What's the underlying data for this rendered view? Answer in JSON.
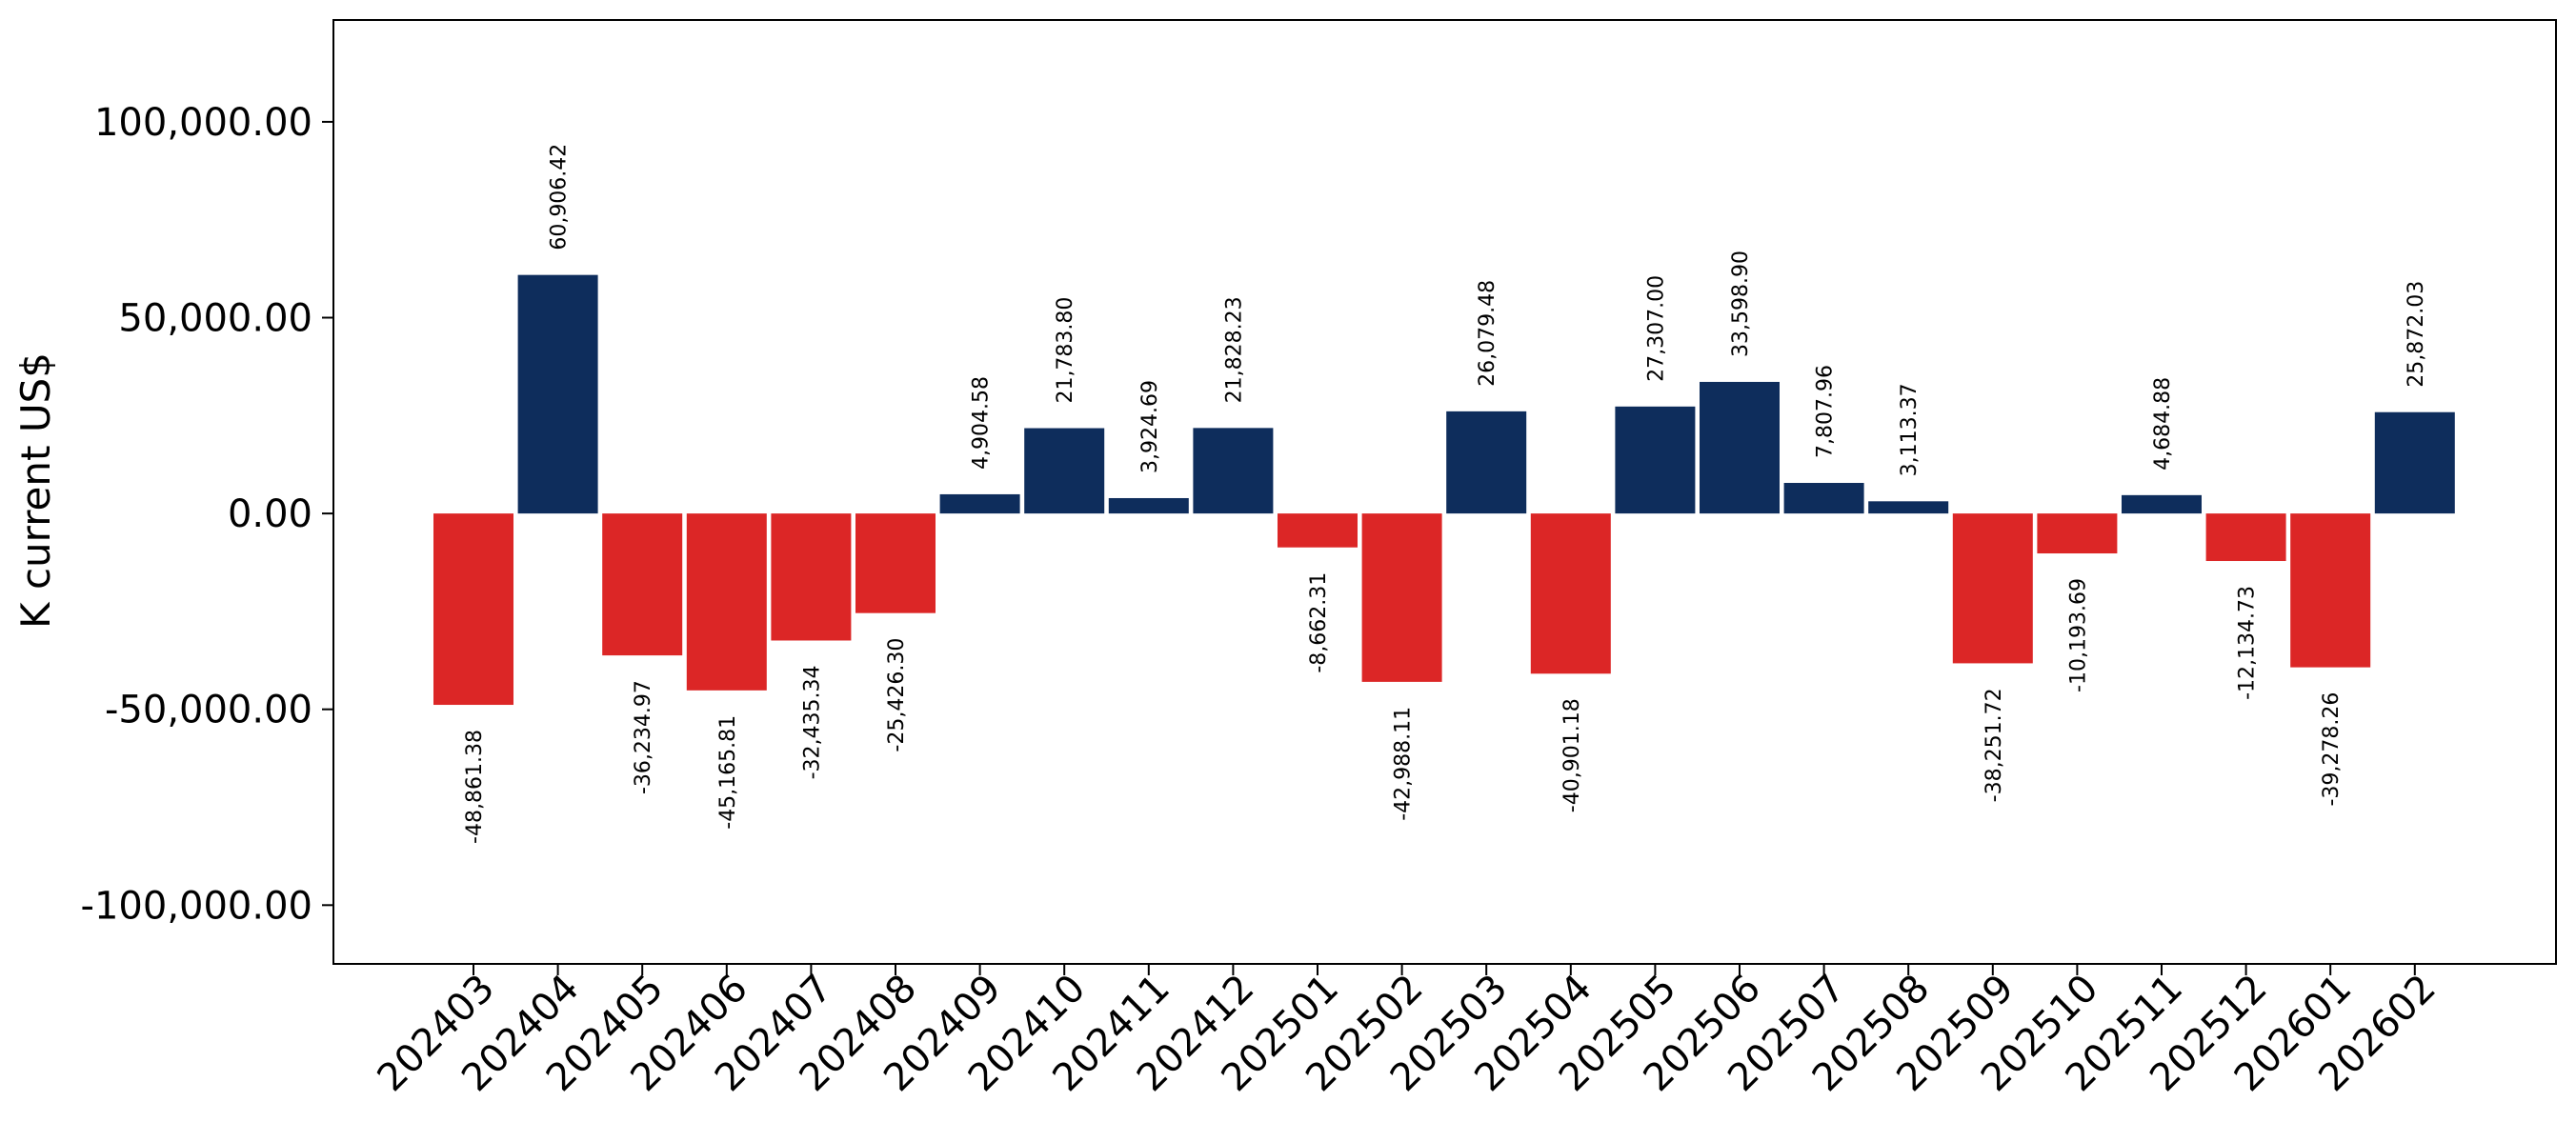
{
  "chart_data": {
    "type": "bar",
    "title": "",
    "xlabel": "",
    "ylabel": "K current US$",
    "ylim": [
      -115000,
      126000
    ],
    "yticks": [
      -100000,
      -50000,
      0,
      50000,
      100000
    ],
    "ytick_labels": [
      "-100,000.00",
      "-50,000.00",
      "0.00",
      "50,000.00",
      "100,000.00"
    ],
    "grid": false,
    "legend": "none",
    "colors": {
      "positive": "#0e2d5c",
      "negative": "#dc2626"
    },
    "categories": [
      "202403",
      "202404",
      "202405",
      "202406",
      "202407",
      "202408",
      "202409",
      "202410",
      "202411",
      "202412",
      "202501",
      "202502",
      "202503",
      "202504",
      "202505",
      "202506",
      "202507",
      "202508",
      "202509",
      "202510",
      "202511",
      "202512",
      "202601",
      "202602"
    ],
    "values": [
      -48861.38,
      60906.42,
      -36234.97,
      -45165.81,
      -32435.34,
      -25426.3,
      4904.58,
      21783.8,
      3924.69,
      21828.23,
      -8662.31,
      -42988.11,
      26079.48,
      -40901.18,
      27307.0,
      33598.9,
      7807.96,
      3113.37,
      -38251.72,
      -10193.69,
      4684.88,
      -12134.73,
      -39278.26,
      25872.03
    ],
    "value_labels": [
      "-48,861.38",
      "60,906.42",
      "-36,234.97",
      "-45,165.81",
      "-32,435.34",
      "-25,426.30",
      "4,904.58",
      "21,783.80",
      "3,924.69",
      "21,828.23",
      "-8,662.31",
      "-42,988.11",
      "26,079.48",
      "-40,901.18",
      "27,307.00",
      "33,598.90",
      "7,807.96",
      "3,113.37",
      "-38,251.72",
      "-10,193.69",
      "4,684.88",
      "-12,134.73",
      "-39,278.26",
      "25,872.03"
    ]
  }
}
